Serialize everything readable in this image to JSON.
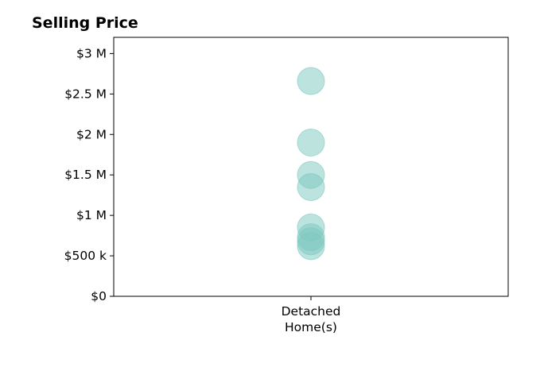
{
  "chart_data": {
    "type": "scatter",
    "title": "Selling Price",
    "xlabel": "",
    "ylabel": "",
    "categories": [
      "Detached\nHome(s)"
    ],
    "ylim": [
      0,
      3200000
    ],
    "yticks": [
      0,
      500000,
      1000000,
      1500000,
      2000000,
      2500000,
      3000000
    ],
    "ytick_labels": [
      "$0",
      "$500 k",
      "$1 M",
      "$1.5 M",
      "$2 M",
      "$2.5 M",
      "$3 M"
    ],
    "grid": false,
    "series": [
      {
        "category": "Detached\nHome(s)",
        "color": "#7cc8c0",
        "values": [
          2660000,
          1900000,
          1500000,
          1350000,
          850000,
          730000,
          680000,
          620000
        ]
      }
    ]
  }
}
